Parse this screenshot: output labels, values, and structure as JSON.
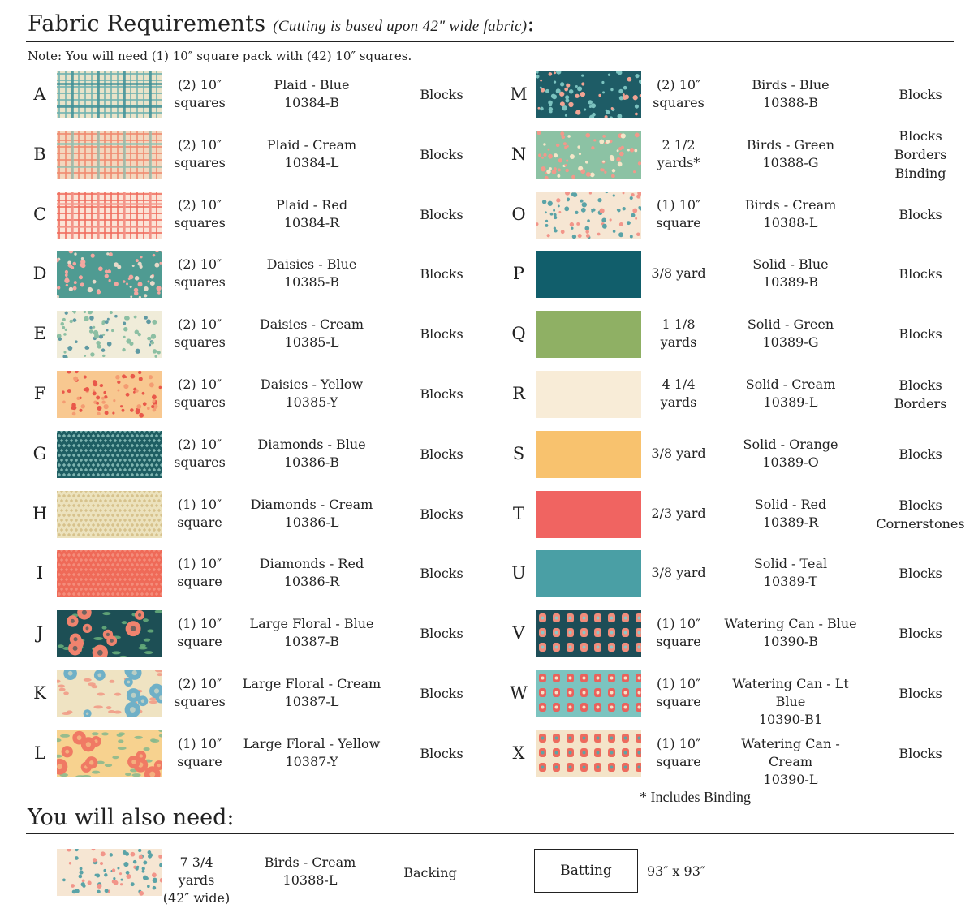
{
  "heading": {
    "title": "Fabric Requirements",
    "subtitle": "(Cutting is based upon 42″ wide fabric)",
    "colon": ":"
  },
  "note": "Note: You will need (1) 10″ square pack with (42) 10″ squares.",
  "fabrics": [
    {
      "letter": "A",
      "amount": [
        "(2) 10″",
        "squares"
      ],
      "fabric": [
        "Plaid - Blue",
        "10384-B"
      ],
      "use": [
        "Blocks"
      ],
      "swatch": {
        "pattern": "plaid",
        "base": "#e9e3c9",
        "fg": "#6fb1b0",
        "fg2": "#3e8f95"
      }
    },
    {
      "letter": "B",
      "amount": [
        "(2) 10″",
        "squares"
      ],
      "fabric": [
        "Plaid - Cream",
        "10384-L"
      ],
      "use": [
        "Blocks"
      ],
      "swatch": {
        "pattern": "plaid",
        "base": "#f3d6bd",
        "fg": "#f0896f",
        "fg2": "#8cc3b5"
      }
    },
    {
      "letter": "C",
      "amount": [
        "(2) 10″",
        "squares"
      ],
      "fabric": [
        "Plaid - Red",
        "10384-R"
      ],
      "use": [
        "Blocks"
      ],
      "swatch": {
        "pattern": "plaid",
        "base": "#fbe3d6",
        "fg": "#f06b5e",
        "fg2": "#f39a8e"
      }
    },
    {
      "letter": "D",
      "amount": [
        "(2) 10″",
        "squares"
      ],
      "fabric": [
        "Daisies - Blue",
        "10385-B"
      ],
      "use": [
        "Blocks"
      ],
      "swatch": {
        "pattern": "dots",
        "base": "#4f9b92",
        "fg": "#f3a7a0",
        "fg2": "#e7d9c9"
      }
    },
    {
      "letter": "E",
      "amount": [
        "(2) 10″",
        "squares"
      ],
      "fabric": [
        "Daisies - Cream",
        "10385-L"
      ],
      "use": [
        "Blocks"
      ],
      "swatch": {
        "pattern": "dots",
        "base": "#f0ecd9",
        "fg": "#8cbfa3",
        "fg2": "#5f9aa3"
      }
    },
    {
      "letter": "F",
      "amount": [
        "(2) 10″",
        "squares"
      ],
      "fabric": [
        "Daisies - Yellow",
        "10385-Y"
      ],
      "use": [
        "Blocks"
      ],
      "swatch": {
        "pattern": "dots",
        "base": "#f8c890",
        "fg": "#e9584a",
        "fg2": "#f49c72"
      }
    },
    {
      "letter": "G",
      "amount": [
        "(2) 10″",
        "squares"
      ],
      "fabric": [
        "Diamonds - Blue",
        "10386-B"
      ],
      "use": [
        "Blocks"
      ],
      "swatch": {
        "pattern": "diamond",
        "base": "#1e5e63",
        "fg": "#7fb5b1",
        "fg2": "#2f7a7e"
      }
    },
    {
      "letter": "H",
      "amount": [
        "(1) 10″",
        "square"
      ],
      "fabric": [
        "Diamonds - Cream",
        "10386-L"
      ],
      "use": [
        "Blocks"
      ],
      "swatch": {
        "pattern": "diamond",
        "base": "#ece2bd",
        "fg": "#d7c28c",
        "fg2": "#e6d6a3"
      }
    },
    {
      "letter": "I",
      "amount": [
        "(1) 10″",
        "square"
      ],
      "fabric": [
        "Diamonds - Red",
        "10386-R"
      ],
      "use": [
        "Blocks"
      ],
      "swatch": {
        "pattern": "diamond",
        "base": "#ef6a58",
        "fg": "#f48d7b",
        "fg2": "#e45a4c"
      }
    },
    {
      "letter": "J",
      "amount": [
        "(1) 10″",
        "square"
      ],
      "fabric": [
        "Large Floral - Blue",
        "10387-B"
      ],
      "use": [
        "Blocks"
      ],
      "swatch": {
        "pattern": "floral",
        "base": "#1d4f55",
        "fg": "#f0836e",
        "fg2": "#6ab07d"
      }
    },
    {
      "letter": "K",
      "amount": [
        "(2) 10″",
        "squares"
      ],
      "fabric": [
        "Large Floral - Cream",
        "10387-L"
      ],
      "use": [
        "Blocks"
      ],
      "swatch": {
        "pattern": "floral",
        "base": "#efe3c2",
        "fg": "#6fb0c7",
        "fg2": "#f19884"
      }
    },
    {
      "letter": "L",
      "amount": [
        "(1) 10″",
        "square"
      ],
      "fabric": [
        "Large Floral - Yellow",
        "10387-Y"
      ],
      "use": [
        "Blocks"
      ],
      "swatch": {
        "pattern": "floral",
        "base": "#f7d28f",
        "fg": "#f07a64",
        "fg2": "#86b98d"
      }
    },
    {
      "letter": "M",
      "amount": [
        "(2) 10″",
        "squares"
      ],
      "fabric": [
        "Birds - Blue",
        "10388-B"
      ],
      "use": [
        "Blocks"
      ],
      "swatch": {
        "pattern": "dots",
        "base": "#1e5c66",
        "fg": "#7bc2bf",
        "fg2": "#f2a393"
      }
    },
    {
      "letter": "N",
      "amount": [
        "2 1/2",
        "yards*"
      ],
      "fabric": [
        "Birds - Green",
        "10388-G"
      ],
      "use": [
        "Blocks",
        "Borders",
        "Binding"
      ],
      "swatch": {
        "pattern": "dots",
        "base": "#8cc2a4",
        "fg": "#f2998b",
        "fg2": "#f5e6c8"
      }
    },
    {
      "letter": "O",
      "amount": [
        "(1) 10″",
        "square"
      ],
      "fabric": [
        "Birds - Cream",
        "10388-L"
      ],
      "use": [
        "Blocks"
      ],
      "swatch": {
        "pattern": "dots",
        "base": "#f6e6d3",
        "fg": "#5aa3a7",
        "fg2": "#f2958a"
      }
    },
    {
      "letter": "P",
      "amount": [
        "3/8 yard"
      ],
      "fabric": [
        "Solid - Blue",
        "10389-B"
      ],
      "use": [
        "Blocks"
      ],
      "swatch": {
        "pattern": "solid",
        "base": "#115e6b"
      }
    },
    {
      "letter": "Q",
      "amount": [
        "1 1/8",
        "yards"
      ],
      "fabric": [
        "Solid - Green",
        "10389-G"
      ],
      "use": [
        "Blocks"
      ],
      "swatch": {
        "pattern": "solid",
        "base": "#8fb064"
      }
    },
    {
      "letter": "R",
      "amount": [
        "4 1/4",
        "yards"
      ],
      "fabric": [
        "Solid - Cream",
        "10389-L"
      ],
      "use": [
        "Blocks",
        "Borders"
      ],
      "swatch": {
        "pattern": "solid",
        "base": "#f8ecd7"
      }
    },
    {
      "letter": "S",
      "amount": [
        "3/8 yard"
      ],
      "fabric": [
        "Solid - Orange",
        "10389-O"
      ],
      "use": [
        "Blocks"
      ],
      "swatch": {
        "pattern": "solid",
        "base": "#f8c26e"
      }
    },
    {
      "letter": "T",
      "amount": [
        "2/3 yard"
      ],
      "fabric": [
        "Solid - Red",
        "10389-R"
      ],
      "use": [
        "Blocks",
        "Cornerstones"
      ],
      "swatch": {
        "pattern": "solid",
        "base": "#f06461"
      }
    },
    {
      "letter": "U",
      "amount": [
        "3/8 yard"
      ],
      "fabric": [
        "Solid - Teal",
        "10389-T"
      ],
      "use": [
        "Blocks"
      ],
      "swatch": {
        "pattern": "solid",
        "base": "#4a9fa5"
      }
    },
    {
      "letter": "V",
      "amount": [
        "(1) 10″",
        "square"
      ],
      "fabric": [
        "Watering Can - Blue",
        "10390-B"
      ],
      "use": [
        "Blocks"
      ],
      "swatch": {
        "pattern": "cans",
        "base": "#1d4d57",
        "fg": "#f28b7a",
        "fg2": "#8dc4c5"
      }
    },
    {
      "letter": "W",
      "amount": [
        "(1) 10″",
        "square"
      ],
      "fabric": [
        "Watering Can - Lt Blue",
        "10390-B1"
      ],
      "use": [
        "Blocks"
      ],
      "swatch": {
        "pattern": "cans",
        "base": "#7cc4c0",
        "fg": "#e9615c",
        "fg2": "#f4e3c9"
      }
    },
    {
      "letter": "X",
      "amount": [
        "(1) 10″",
        "square"
      ],
      "fabric": [
        "Watering Can - Cream",
        "10390-L"
      ],
      "use": [
        "Blocks"
      ],
      "swatch": {
        "pattern": "cans",
        "base": "#f4e4c9",
        "fg": "#ee6b5e",
        "fg2": "#5ea4a5"
      }
    }
  ],
  "footnote": "* Includes Binding",
  "also": {
    "heading": "You will also need:",
    "backing": {
      "amount": [
        "7 3/4 yards",
        "(42″ wide)"
      ],
      "fabric": [
        "Birds - Cream",
        "10388-L"
      ],
      "use": "Backing",
      "swatch": {
        "pattern": "dots",
        "base": "#f6e6d3",
        "fg": "#5aa3a7",
        "fg2": "#f2958a"
      }
    },
    "batting": {
      "label": "Batting",
      "size": "93″ x 93″"
    }
  }
}
